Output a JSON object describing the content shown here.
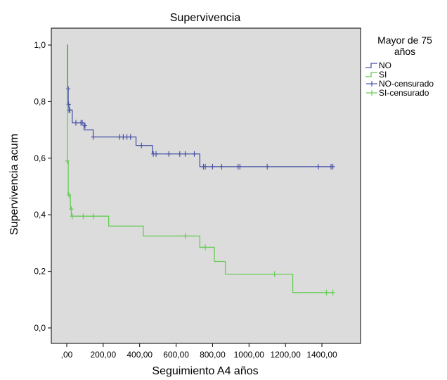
{
  "chart_data": {
    "type": "line",
    "title": "Supervivencia",
    "xlabel": "Seguimiento A4 años",
    "ylabel": "Supervivencia acum",
    "xlim": [
      -40,
      1520
    ],
    "ylim": [
      0,
      1.05
    ],
    "x_ticks": [
      0,
      200,
      400,
      600,
      800,
      1000,
      1200,
      1400
    ],
    "x_tick_labels": [
      ",00",
      "200,00",
      "400,00",
      "600,00",
      "800,00",
      "1000,00",
      "1200,00",
      "1400,00"
    ],
    "y_ticks": [
      0,
      0.2,
      0.4,
      0.6,
      0.8,
      1.0
    ],
    "y_tick_labels": [
      "0,0",
      "0,2",
      "0,4",
      "0,6",
      "0,8",
      "1,0"
    ],
    "grid": false,
    "plot_background": "#dcdcdc",
    "legend": {
      "title": "Mayor de 75 años",
      "position": "top-right-outside",
      "entries": [
        "NO",
        "SI",
        "NO-censurado",
        "SI-censurado"
      ]
    },
    "series": [
      {
        "name": "NO",
        "color": "#4a55a8",
        "step": true,
        "points": [
          [
            0,
            1.0
          ],
          [
            5,
            0.85
          ],
          [
            8,
            0.79
          ],
          [
            12,
            0.77
          ],
          [
            30,
            0.725
          ],
          [
            95,
            0.7
          ],
          [
            145,
            0.675
          ],
          [
            380,
            0.645
          ],
          [
            470,
            0.615
          ],
          [
            730,
            0.57
          ],
          [
            1460,
            0.57
          ]
        ],
        "censored": [
          [
            8,
            0.845
          ],
          [
            10,
            0.79
          ],
          [
            12,
            0.77
          ],
          [
            17,
            0.77
          ],
          [
            50,
            0.725
          ],
          [
            78,
            0.725
          ],
          [
            85,
            0.725
          ],
          [
            100,
            0.715
          ],
          [
            145,
            0.675
          ],
          [
            290,
            0.675
          ],
          [
            310,
            0.675
          ],
          [
            330,
            0.675
          ],
          [
            350,
            0.675
          ],
          [
            410,
            0.645
          ],
          [
            475,
            0.615
          ],
          [
            490,
            0.615
          ],
          [
            560,
            0.615
          ],
          [
            620,
            0.615
          ],
          [
            650,
            0.615
          ],
          [
            700,
            0.615
          ],
          [
            750,
            0.57
          ],
          [
            760,
            0.57
          ],
          [
            800,
            0.57
          ],
          [
            850,
            0.57
          ],
          [
            940,
            0.57
          ],
          [
            950,
            0.57
          ],
          [
            1100,
            0.57
          ],
          [
            1380,
            0.57
          ],
          [
            1450,
            0.57
          ],
          [
            1460,
            0.57
          ]
        ]
      },
      {
        "name": "SI",
        "color": "#66cc55",
        "step": true,
        "points": [
          [
            0,
            1.0
          ],
          [
            3,
            0.59
          ],
          [
            8,
            0.47
          ],
          [
            20,
            0.42
          ],
          [
            25,
            0.395
          ],
          [
            230,
            0.36
          ],
          [
            420,
            0.325
          ],
          [
            730,
            0.285
          ],
          [
            810,
            0.235
          ],
          [
            870,
            0.19
          ],
          [
            1240,
            0.125
          ],
          [
            1460,
            0.125
          ]
        ],
        "censored": [
          [
            3,
            0.59
          ],
          [
            12,
            0.47
          ],
          [
            25,
            0.42
          ],
          [
            30,
            0.395
          ],
          [
            90,
            0.395
          ],
          [
            145,
            0.395
          ],
          [
            650,
            0.325
          ],
          [
            760,
            0.285
          ],
          [
            1140,
            0.19
          ],
          [
            1425,
            0.125
          ],
          [
            1460,
            0.125
          ]
        ]
      }
    ]
  }
}
